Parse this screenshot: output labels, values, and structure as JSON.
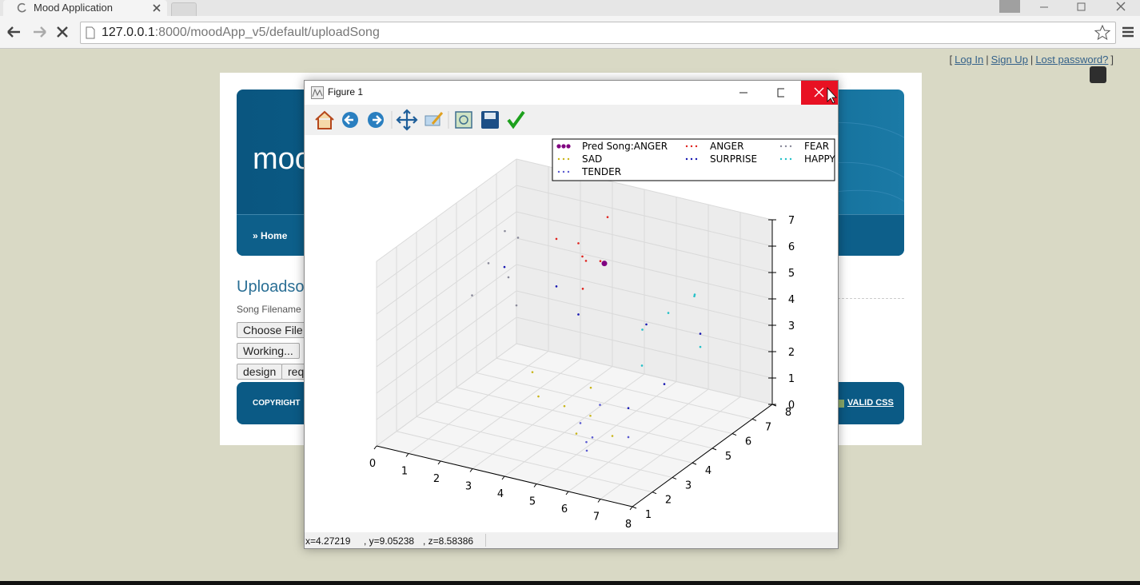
{
  "browser": {
    "tab_title": "Mood Application",
    "url_host": "127.0.0.1",
    "url_path": ":8000/moodApp_v5/default/uploadSong"
  },
  "auth": {
    "open": "[",
    "links": [
      "Log In",
      "Sign Up",
      "Lost password?"
    ],
    "separator": "|",
    "close": "]"
  },
  "site": {
    "logo": "moo",
    "nav": {
      "arrow": "»",
      "label": "Home"
    },
    "heading": "Uploadso",
    "field_label": "Song Filename",
    "buttons": [
      "Choose File",
      "Working...",
      "design",
      "req"
    ],
    "footer_left": "COPYRIGHT",
    "footer_right": "VALID CSS"
  },
  "figure": {
    "title": "Figure 1",
    "status": [
      "x=4.27219",
      ", y=9.05238",
      ", z=8.58386"
    ],
    "chart_data": {
      "type": "scatter3d",
      "xlim": [
        0,
        8
      ],
      "ylim": [
        1,
        8
      ],
      "zlim": [
        0,
        7
      ],
      "xticks": [
        0,
        1,
        2,
        3,
        4,
        5,
        6,
        7,
        8
      ],
      "yticks": [
        1,
        2,
        3,
        4,
        5,
        6,
        7,
        8
      ],
      "zticks": [
        0,
        1,
        2,
        3,
        4,
        5,
        6,
        7
      ],
      "grid": true,
      "legend": "upper right",
      "series": [
        {
          "name": "Pred Song:ANGER",
          "color": "#800080",
          "highlight": true,
          "x": [
            4
          ],
          "y": [
            6
          ],
          "z": [
            5.3
          ]
        },
        {
          "name": "ANGER",
          "color": "#e0201b",
          "x": [
            2.5,
            3,
            3.5,
            2.8,
            3.2,
            4,
            3.6
          ],
          "y": [
            6,
            6.5,
            5.5,
            7,
            6.2,
            5.8,
            6.8
          ],
          "z": [
            5.8,
            5,
            6.2,
            4.5,
            4,
            5.5,
            6.5
          ]
        },
        {
          "name": "FEAR",
          "color": "#8a8a9a",
          "x": [
            1,
            1.2,
            0.8,
            1.5,
            1.3,
            2
          ],
          "y": [
            5,
            5.5,
            4.5,
            5.2,
            6,
            4.8
          ],
          "z": [
            5,
            6,
            4,
            4.5,
            5.5,
            3.8
          ]
        },
        {
          "name": "SAD",
          "color": "#c8b418",
          "x": [
            4,
            3.5,
            4.5,
            5,
            3,
            4.2,
            5.5
          ],
          "y": [
            4,
            3.5,
            4.5,
            3,
            4,
            5,
            4
          ],
          "z": [
            1,
            1.5,
            0.5,
            0.8,
            2,
            1.2,
            0.3
          ]
        },
        {
          "name": "SURPRISE",
          "color": "#1515b0",
          "x": [
            1.5,
            2.5,
            5,
            6.5,
            6,
            3.5,
            7
          ],
          "y": [
            5,
            6,
            6.5,
            5,
            4,
            5.5,
            6
          ],
          "z": [
            5,
            4,
            3,
            2,
            1.5,
            3.5,
            3.5
          ]
        },
        {
          "name": "HAPPY",
          "color": "#22c0c8",
          "x": [
            6,
            6.5,
            5.5,
            7,
            6.2,
            5.8
          ],
          "y": [
            6,
            6.5,
            5.5,
            6,
            7,
            5
          ],
          "z": [
            4,
            4.5,
            3.5,
            3,
            4.2,
            2.5
          ]
        },
        {
          "name": "TENDER",
          "color": "#5a5ad0",
          "x": [
            4.5,
            5,
            5.5,
            6,
            4.8,
            5.2
          ],
          "y": [
            4,
            3.5,
            3,
            4,
            4.5,
            3.2
          ],
          "z": [
            0.5,
            0.2,
            0.8,
            0.4,
            1,
            0.1
          ]
        }
      ]
    }
  }
}
